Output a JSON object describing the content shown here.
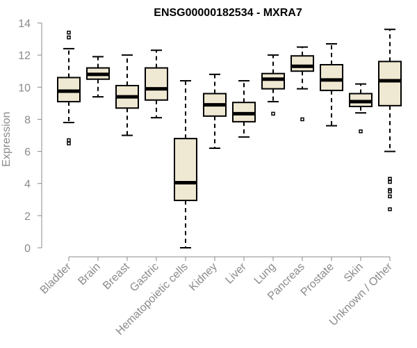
{
  "chart_data": {
    "type": "boxplot",
    "title": "ENSG00000182534 - MXRA7",
    "xlabel": "",
    "ylabel": "Expression",
    "ylim": [
      0,
      14
    ],
    "yticks": [
      0,
      2,
      4,
      6,
      8,
      10,
      12,
      14
    ],
    "box_fill": "#efe8d2",
    "box_stroke": "#000000",
    "axis_color": "#8a8a8a",
    "categories": [
      "Bladder",
      "Brain",
      "Breast",
      "Gastric",
      "Hematopoietic cells",
      "Kidney",
      "Liver",
      "Lung",
      "Pancreas",
      "Prostate",
      "Skin",
      "Unknown / Other"
    ],
    "boxes": [
      {
        "label": "Bladder",
        "min": 7.8,
        "q1": 9.1,
        "median": 9.75,
        "q3": 10.6,
        "max": 12.4,
        "outliers": [
          13.4,
          13.1,
          6.7,
          6.5
        ]
      },
      {
        "label": "Brain",
        "min": 9.4,
        "q1": 10.5,
        "median": 10.8,
        "q3": 11.2,
        "max": 11.9,
        "outliers": []
      },
      {
        "label": "Breast",
        "min": 7.0,
        "q1": 8.7,
        "median": 9.4,
        "q3": 10.1,
        "max": 12.0,
        "outliers": []
      },
      {
        "label": "Gastric",
        "min": 8.1,
        "q1": 9.2,
        "median": 9.9,
        "q3": 11.2,
        "max": 12.3,
        "outliers": []
      },
      {
        "label": "Hematopoietic cells",
        "min": 0.0,
        "q1": 2.95,
        "median": 4.05,
        "q3": 6.8,
        "max": 10.4,
        "outliers": []
      },
      {
        "label": "Kidney",
        "min": 6.2,
        "q1": 8.2,
        "median": 8.9,
        "q3": 9.6,
        "max": 10.8,
        "outliers": []
      },
      {
        "label": "Liver",
        "min": 6.9,
        "q1": 7.85,
        "median": 8.35,
        "q3": 9.05,
        "max": 10.4,
        "outliers": []
      },
      {
        "label": "Lung",
        "min": 9.1,
        "q1": 9.9,
        "median": 10.5,
        "q3": 10.85,
        "max": 12.0,
        "outliers": [
          8.35
        ]
      },
      {
        "label": "Pancreas",
        "min": 9.9,
        "q1": 11.0,
        "median": 11.3,
        "q3": 11.95,
        "max": 12.5,
        "outliers": [
          8.0
        ]
      },
      {
        "label": "Prostate",
        "min": 7.6,
        "q1": 9.8,
        "median": 10.45,
        "q3": 11.4,
        "max": 12.7,
        "outliers": []
      },
      {
        "label": "Skin",
        "min": 8.4,
        "q1": 8.8,
        "median": 9.1,
        "q3": 9.6,
        "max": 10.2,
        "outliers": [
          7.25
        ]
      },
      {
        "label": "Unknown / Other",
        "min": 6.0,
        "q1": 8.85,
        "median": 10.4,
        "q3": 11.6,
        "max": 13.6,
        "outliers": [
          4.3,
          4.1,
          3.6,
          3.5,
          3.2,
          2.4
        ]
      }
    ]
  }
}
